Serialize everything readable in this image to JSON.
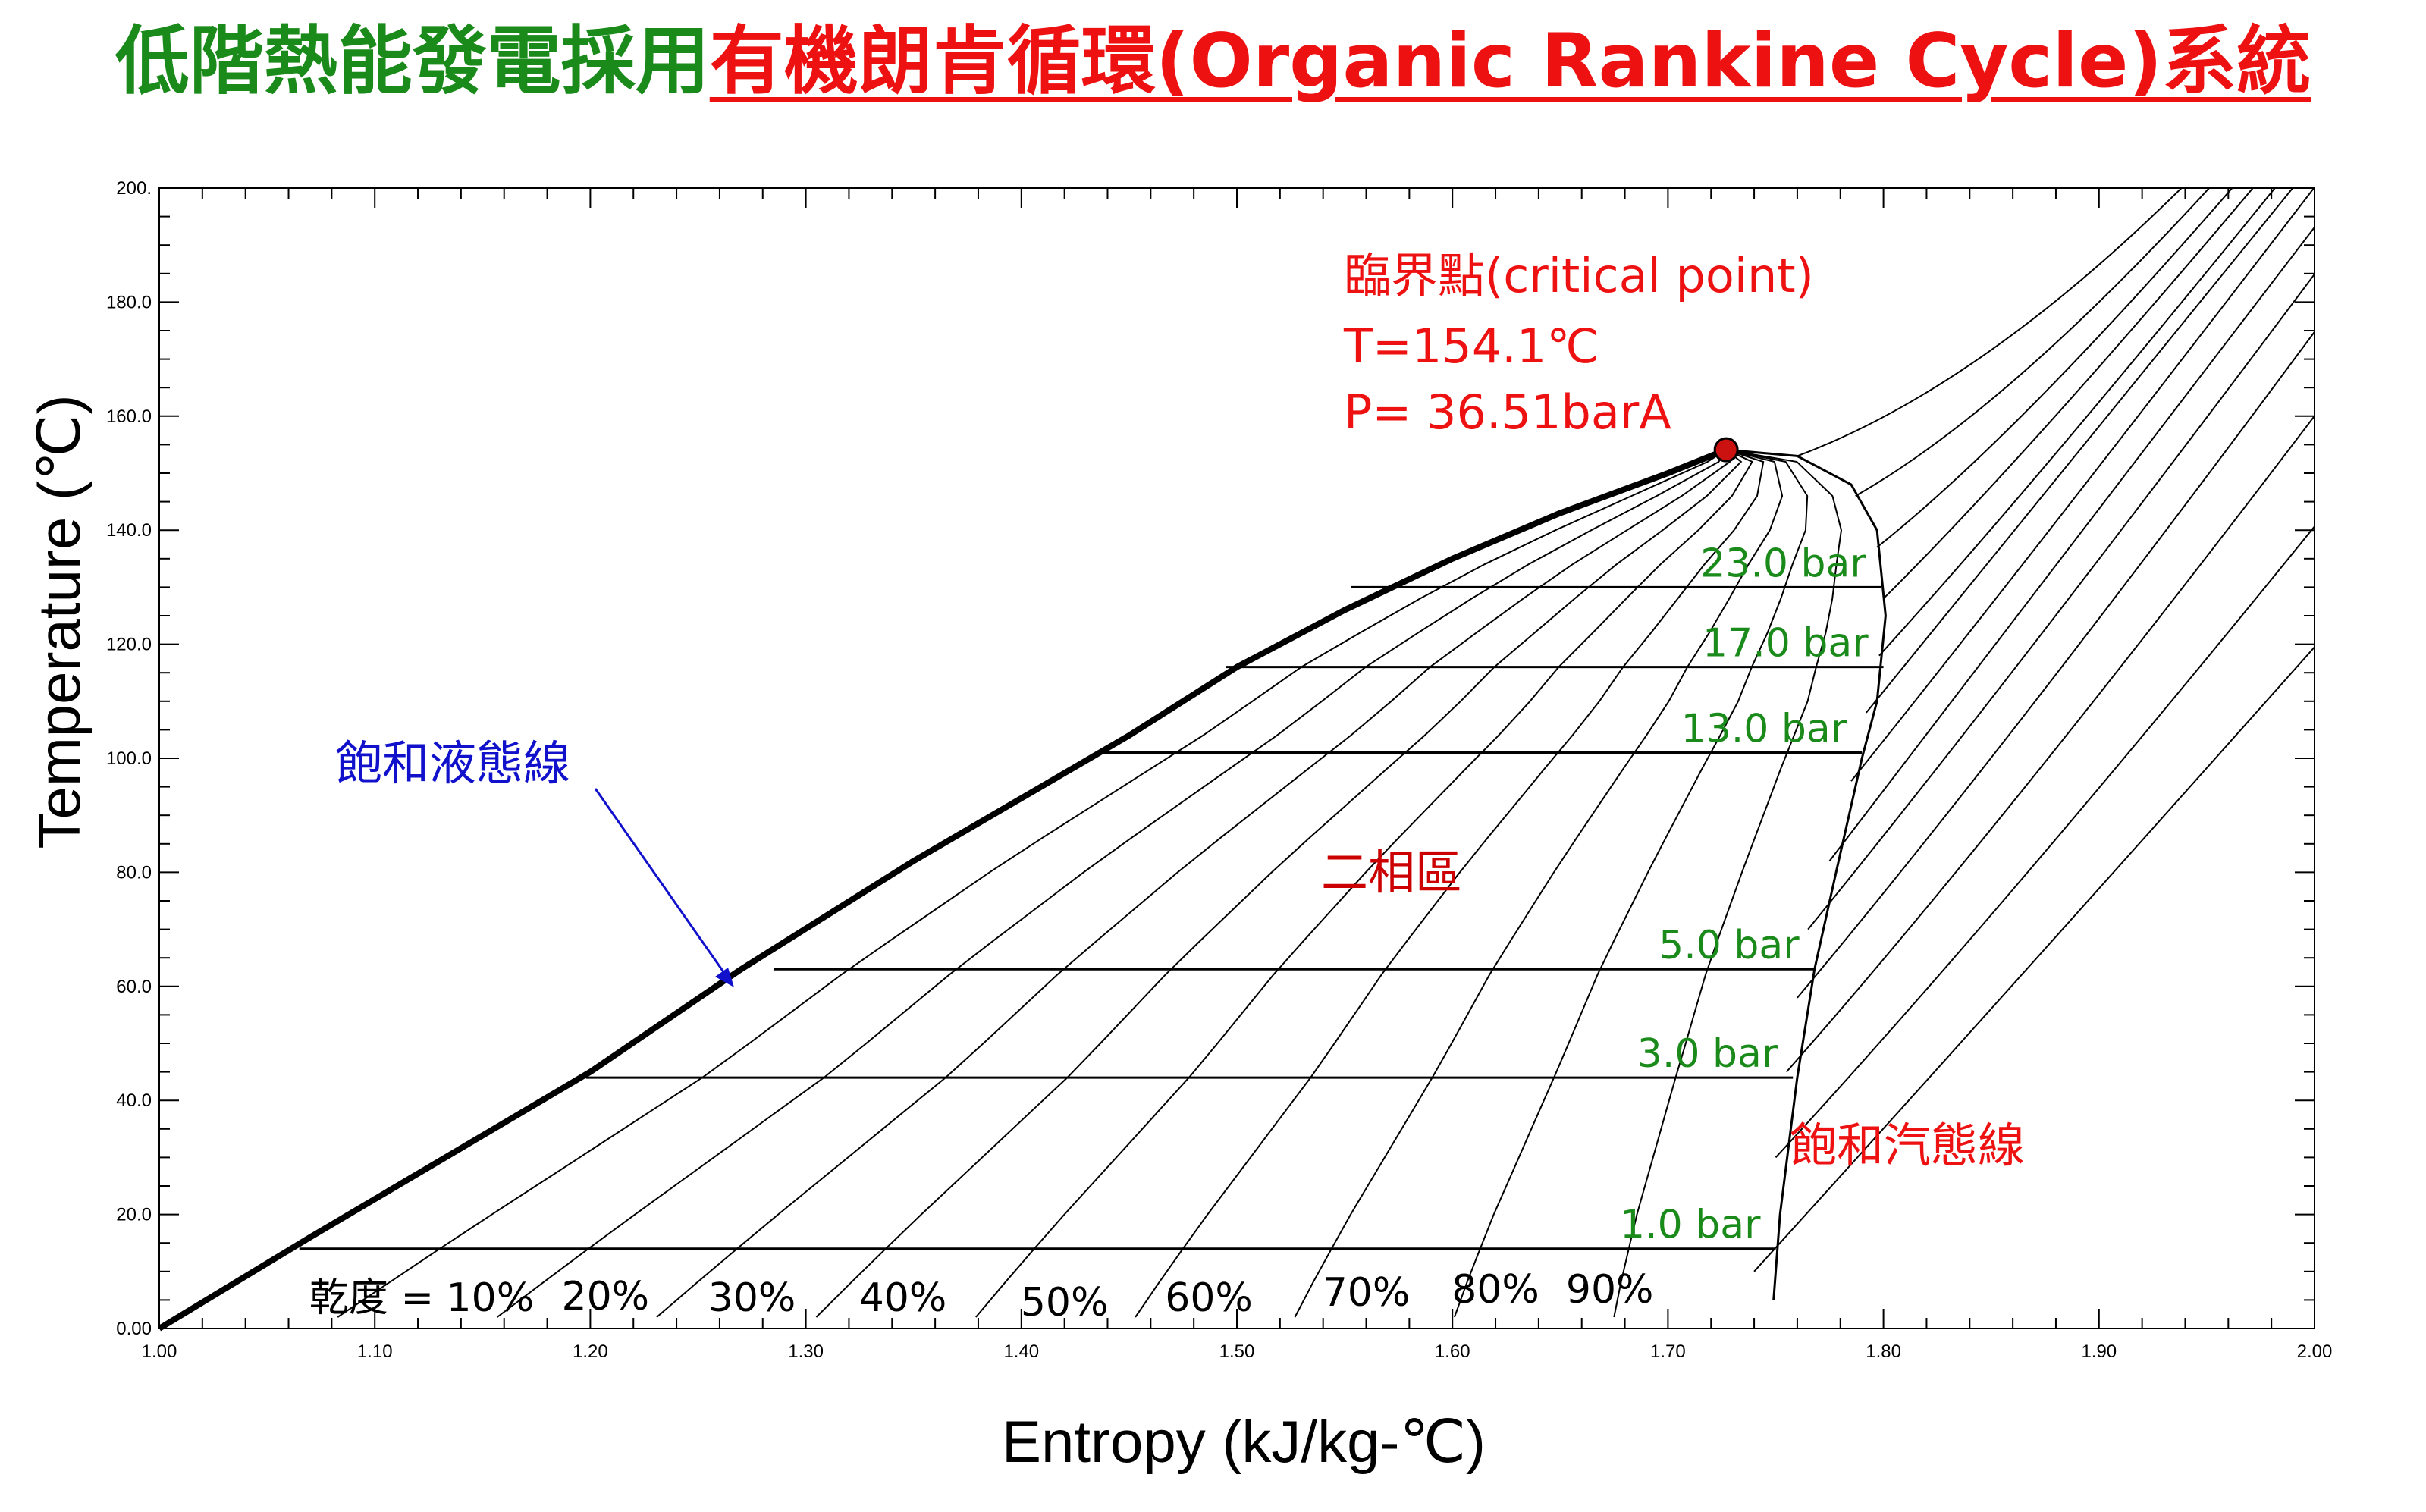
{
  "title": {
    "part_green": "低階熱能發電採用",
    "part_red": "有機朗肯循環(Organic Rankine Cycle)系統"
  },
  "colors": {
    "green": "#1a8a1a",
    "red": "#ee1111",
    "blue": "#1111cc",
    "dark_red": "#cc0000",
    "ink": "#000000"
  },
  "chart_data": {
    "type": "line",
    "xlabel": "Entropy (kJ/kg-℃)",
    "ylabel": "Temperature (℃)",
    "xlim": [
      1.0,
      2.0
    ],
    "ylim": [
      0.0,
      200.0
    ],
    "x_ticks": [
      "1.00",
      "1.10",
      "1.20",
      "1.30",
      "1.40",
      "1.50",
      "1.60",
      "1.70",
      "1.80",
      "1.90",
      "2.00"
    ],
    "y_ticks": [
      "0.00",
      "20.0",
      "40.0",
      "60.0",
      "80.0",
      "100.0",
      "120.0",
      "140.0",
      "160.0",
      "180.0",
      "200."
    ],
    "saturation_liquid": {
      "label": "飽和液態線",
      "points": [
        [
          1.0,
          0
        ],
        [
          1.07,
          16
        ],
        [
          1.2,
          45
        ],
        [
          1.27,
          63
        ],
        [
          1.35,
          82
        ],
        [
          1.45,
          104
        ],
        [
          1.5,
          116
        ],
        [
          1.55,
          126
        ],
        [
          1.6,
          135
        ],
        [
          1.65,
          143
        ],
        [
          1.7,
          150
        ],
        [
          1.727,
          154.1
        ]
      ]
    },
    "saturation_vapor": {
      "label": "飽和汽態線",
      "points": [
        [
          1.727,
          154.1
        ],
        [
          1.76,
          153
        ],
        [
          1.785,
          148
        ],
        [
          1.797,
          140
        ],
        [
          1.801,
          125
        ],
        [
          1.797,
          110
        ],
        [
          1.79,
          100
        ],
        [
          1.778,
          80
        ],
        [
          1.768,
          63
        ],
        [
          1.76,
          44
        ],
        [
          1.752,
          20
        ],
        [
          1.749,
          5
        ]
      ]
    },
    "critical_point": {
      "label": "臨界點(critical point)",
      "temperature": "T=154.1℃",
      "pressure": "P= 36.51barA",
      "s": 1.727,
      "t": 154.1
    },
    "isobars": [
      {
        "label": "23.0 bar",
        "t": 130,
        "s_liquid": 1.553,
        "s_vapor": 1.799
      },
      {
        "label": "17.0 bar",
        "t": 116,
        "s_liquid": 1.495,
        "s_vapor": 1.8
      },
      {
        "label": "13.0 bar",
        "t": 101,
        "s_liquid": 1.437,
        "s_vapor": 1.79
      },
      {
        "label": "5.0 bar",
        "t": 63,
        "s_liquid": 1.285,
        "s_vapor": 1.768
      },
      {
        "label": "3.0 bar",
        "t": 44,
        "s_liquid": 1.198,
        "s_vapor": 1.758
      },
      {
        "label": "1.0 bar",
        "t": 14,
        "s_liquid": 1.065,
        "s_vapor": 1.75
      }
    ],
    "quality_labels": [
      "乾度 = 10%",
      "20%",
      "30%",
      "40%",
      "50%",
      "60%",
      "70%",
      "80%",
      "90%"
    ],
    "two_phase_label": "二相區"
  }
}
